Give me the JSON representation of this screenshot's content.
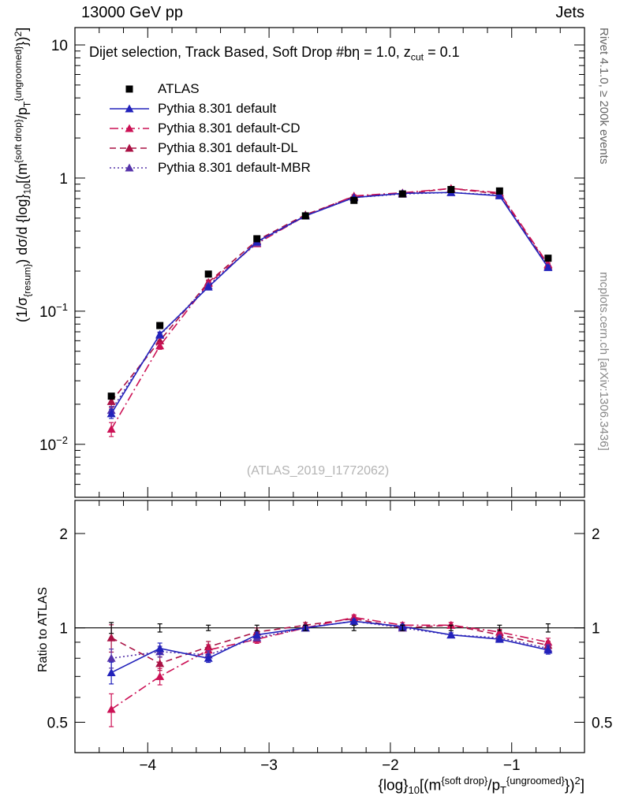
{
  "header": {
    "left": "13000 GeV pp",
    "right": "Jets"
  },
  "side_notes": {
    "rivet": "Rivet 4.1.0, ≥ 200k events",
    "mcplots": "mcplots.cern.ch [arXiv:1306.3436]"
  },
  "watermark": "(ATLAS_2019_I1772062)",
  "panel_title_segments": [
    {
      "t": "Dijet selection, Track Based, Soft Drop #b",
      "s": "n"
    },
    {
      "t": "η = 1.0, z",
      "s": "n"
    },
    {
      "t": "cut",
      "s": "sub"
    },
    {
      "t": " = 0.1",
      "s": "n"
    }
  ],
  "ratio_axis_label": "Ratio to ATLAS",
  "axes": {
    "x": {
      "min": -4.6,
      "max": -0.4,
      "major_ticks": [
        -4,
        -3,
        -2,
        -1
      ],
      "minor_step": 0.2,
      "label_segments": [
        {
          "t": "{log}",
          "s": "n"
        },
        {
          "t": "10",
          "s": "sub"
        },
        {
          "t": "[(m",
          "s": "n"
        },
        {
          "t": "{soft drop}",
          "s": "sup"
        },
        {
          "t": "/p",
          "s": "n"
        },
        {
          "t": "T",
          "s": "sub"
        },
        {
          "t": "{ungroomed}",
          "s": "sup"
        },
        {
          "t": "})",
          "s": "n"
        },
        {
          "t": "2",
          "s": "sup"
        },
        {
          "t": "]",
          "s": "n"
        }
      ]
    },
    "y_top": {
      "scale": "log",
      "min": 0.004,
      "max": 13.5,
      "label_segments": [
        {
          "t": "(1/σ",
          "s": "n"
        },
        {
          "t": "{resum}",
          "s": "sub"
        },
        {
          "t": ") dσ/d {log}",
          "s": "n"
        },
        {
          "t": "10",
          "s": "sub"
        },
        {
          "t": "[(m",
          "s": "n"
        },
        {
          "t": "{soft drop}",
          "s": "sup"
        },
        {
          "t": "/p",
          "s": "n"
        },
        {
          "t": "T",
          "s": "sub"
        },
        {
          "t": "{ungroomed}",
          "s": "sup"
        },
        {
          "t": "})",
          "s": "n"
        },
        {
          "t": "2",
          "s": "sup"
        },
        {
          "t": "]",
          "s": "n"
        }
      ]
    },
    "y_bottom": {
      "scale": "log",
      "min": 0.4,
      "max": 2.55,
      "major_ticks": [
        0.5,
        1,
        2
      ],
      "minor_ticks": [
        0.6,
        0.7,
        0.8,
        0.9
      ]
    }
  },
  "chart_data": {
    "type": "line",
    "x": [
      -4.3,
      -3.9,
      -3.5,
      -3.1,
      -2.7,
      -2.3,
      -1.9,
      -1.5,
      -1.1,
      -0.7
    ],
    "series": [
      {
        "name": "ATLAS",
        "kind": "data",
        "color": "#000000",
        "marker": "square",
        "line": "none",
        "values": [
          0.023,
          0.078,
          0.19,
          0.35,
          0.52,
          0.68,
          0.76,
          0.82,
          0.8,
          0.25
        ],
        "err_frac": [
          0.04,
          0.03,
          0.02,
          0.02,
          0.02,
          0.02,
          0.02,
          0.02,
          0.02,
          0.03
        ]
      },
      {
        "name": "Pythia 8.301 default",
        "kind": "mc",
        "color": "#2222bb",
        "marker": "triangle",
        "line": "solid",
        "values": [
          0.017,
          0.067,
          0.152,
          0.333,
          0.52,
          0.714,
          0.768,
          0.779,
          0.736,
          0.213
        ],
        "ratio": [
          0.72,
          0.86,
          0.8,
          0.95,
          1.0,
          1.05,
          1.01,
          0.95,
          0.92,
          0.85
        ],
        "err_frac": [
          0.08,
          0.04,
          0.03,
          0.02,
          0.015,
          0.015,
          0.015,
          0.015,
          0.02,
          0.03
        ]
      },
      {
        "name": "Pythia 8.301 default-CD",
        "kind": "mc",
        "color": "#cc1155",
        "marker": "triangle",
        "line": "dashdot",
        "values": [
          0.013,
          0.055,
          0.162,
          0.322,
          0.52,
          0.734,
          0.775,
          0.836,
          0.776,
          0.225
        ],
        "ratio": [
          0.55,
          0.7,
          0.85,
          0.92,
          1.0,
          1.08,
          1.02,
          1.02,
          0.97,
          0.9
        ],
        "err_frac": [
          0.12,
          0.06,
          0.04,
          0.03,
          0.02,
          0.02,
          0.02,
          0.02,
          0.02,
          0.03
        ]
      },
      {
        "name": "Pythia 8.301 default-DL",
        "kind": "mc",
        "color": "#aa1144",
        "marker": "triangle",
        "line": "dash",
        "values": [
          0.021,
          0.06,
          0.165,
          0.34,
          0.53,
          0.728,
          0.76,
          0.836,
          0.76,
          0.22
        ],
        "ratio": [
          0.93,
          0.77,
          0.87,
          0.97,
          1.02,
          1.07,
          1.0,
          1.02,
          0.95,
          0.88
        ],
        "err_frac": [
          0.1,
          0.05,
          0.04,
          0.03,
          0.02,
          0.02,
          0.02,
          0.02,
          0.02,
          0.03
        ]
      },
      {
        "name": "Pythia 8.301 default-MBR",
        "kind": "mc",
        "color": "#5533aa",
        "marker": "triangle",
        "line": "dot",
        "values": [
          0.018,
          0.066,
          0.156,
          0.326,
          0.52,
          0.714,
          0.76,
          0.779,
          0.744,
          0.215
        ],
        "ratio": [
          0.8,
          0.84,
          0.82,
          0.93,
          1.0,
          1.05,
          1.0,
          0.95,
          0.93,
          0.86
        ],
        "err_frac": [
          0.07,
          0.04,
          0.03,
          0.02,
          0.015,
          0.015,
          0.015,
          0.015,
          0.02,
          0.03
        ]
      }
    ]
  }
}
